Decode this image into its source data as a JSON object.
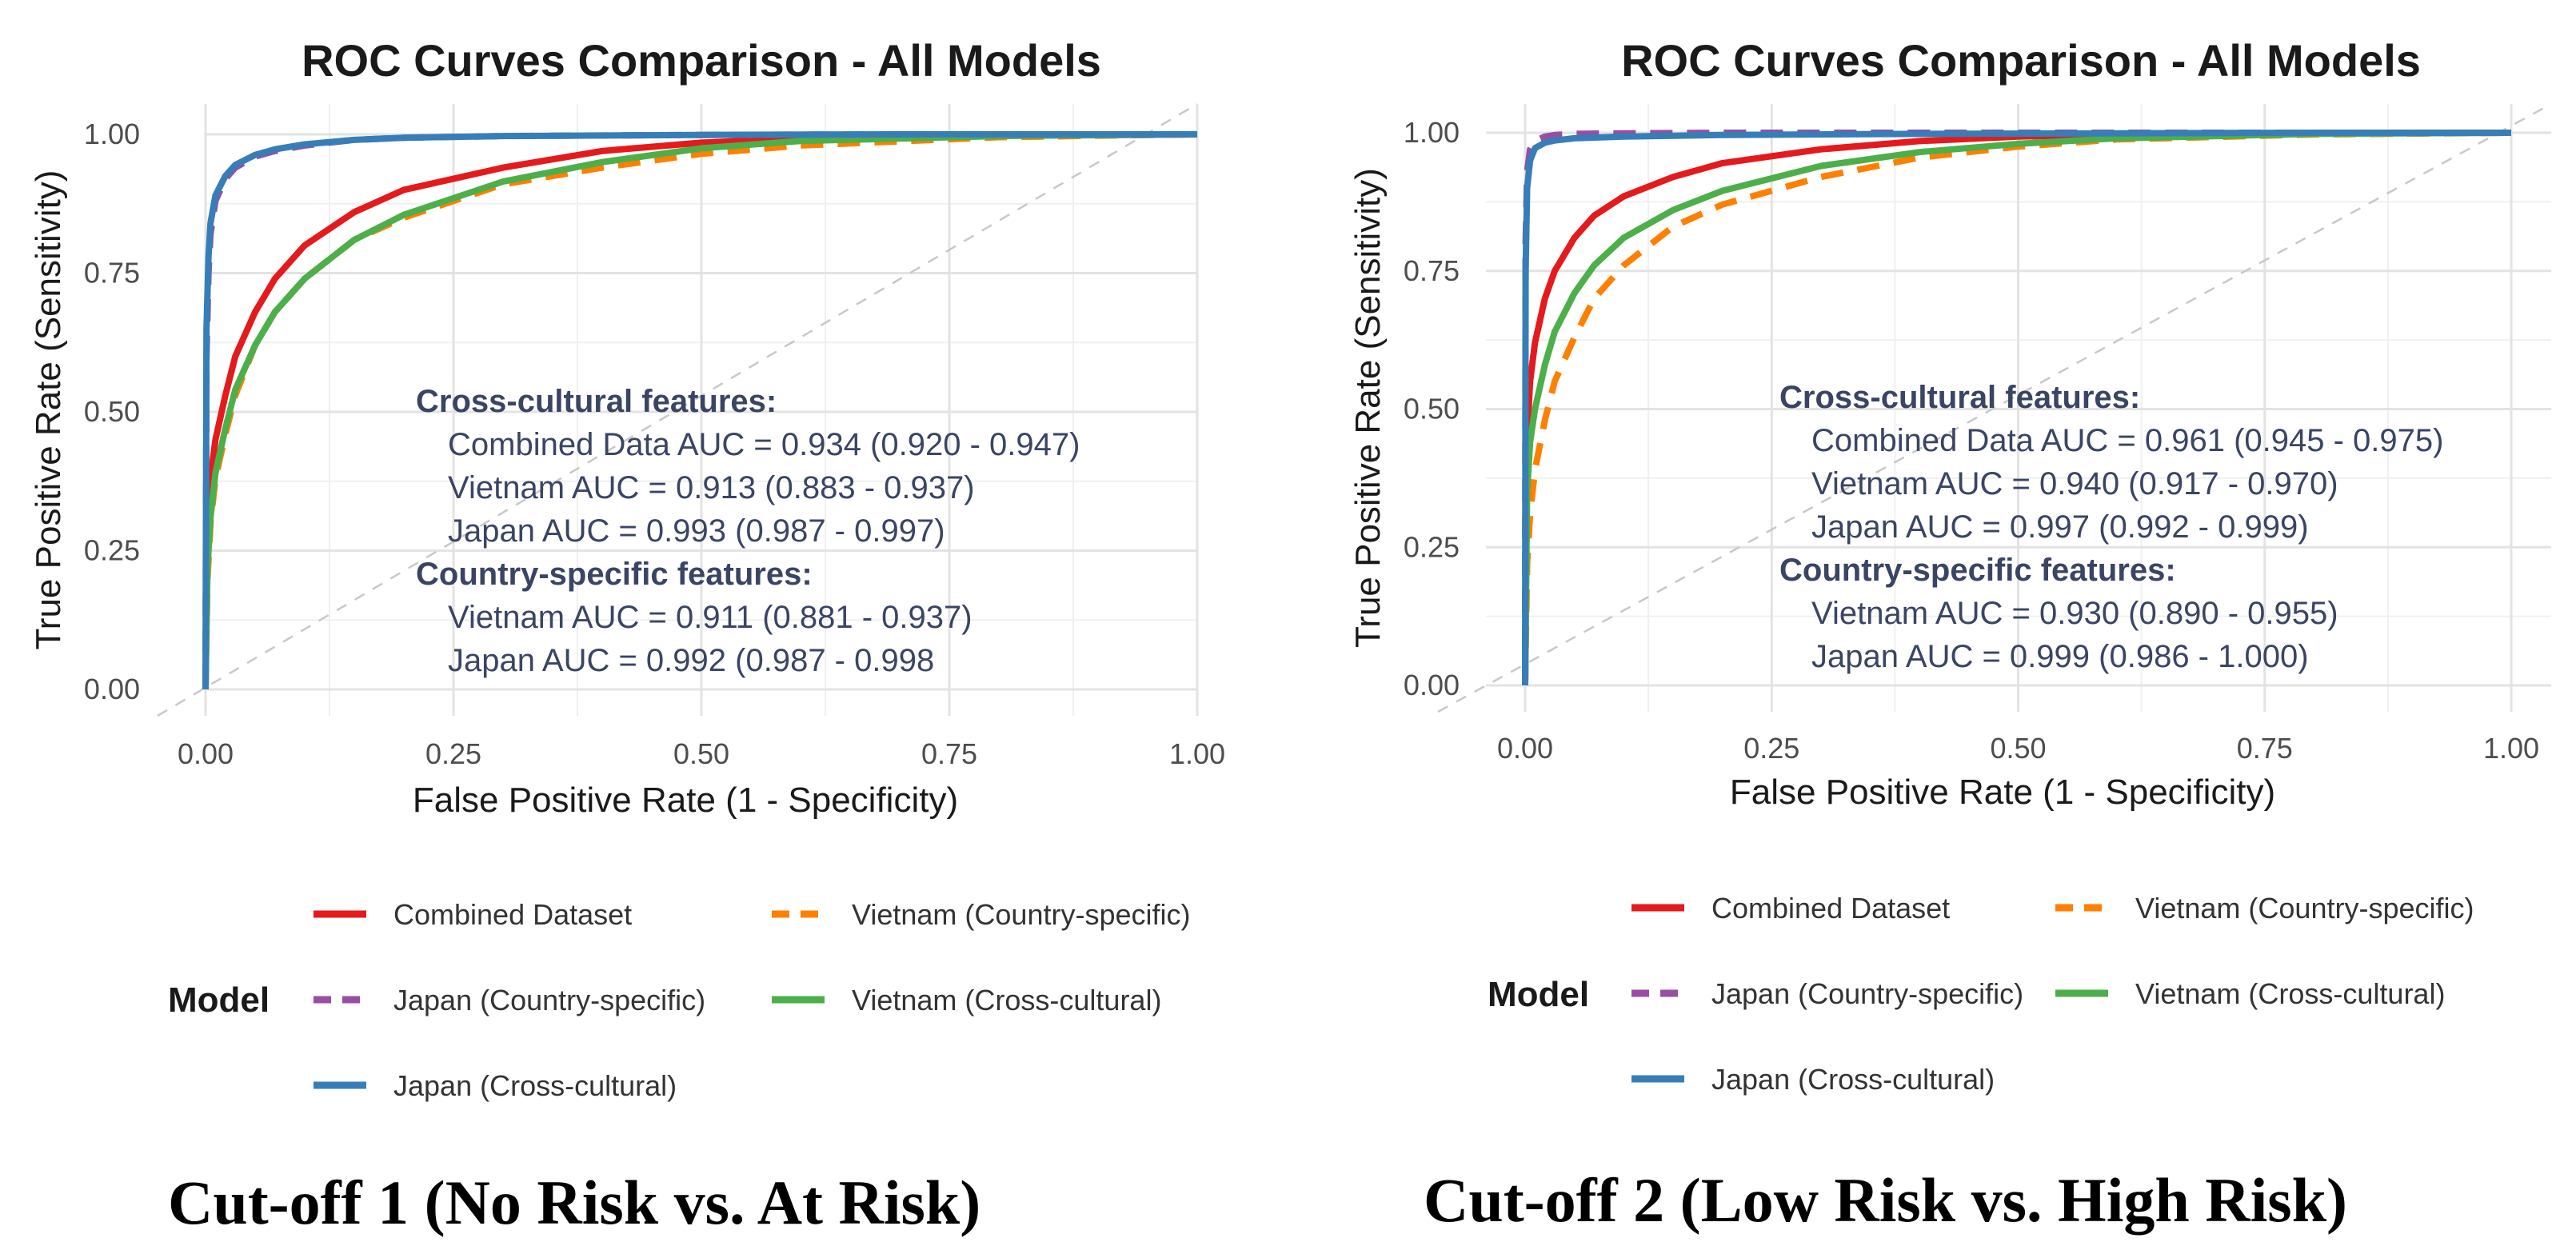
{
  "chart_data": [
    {
      "type": "line",
      "title": "ROC Curves Comparison - All Models",
      "xlabel": "False Positive Rate (1 - Specificity)",
      "ylabel": "True Positive Rate (Sensitivity)",
      "xlim": [
        0,
        1
      ],
      "ylim": [
        0,
        1
      ],
      "x_ticks": [
        "0.00",
        "0.25",
        "0.50",
        "0.75",
        "1.00"
      ],
      "y_ticks": [
        "0.00",
        "0.25",
        "0.50",
        "0.75",
        "1.00"
      ],
      "grid": true,
      "diagonal_reference": true,
      "series": [
        {
          "name": "Combined Dataset",
          "color": "#e41a1c",
          "dash": "solid",
          "x": [
            0,
            0.002,
            0.005,
            0.01,
            0.02,
            0.03,
            0.05,
            0.07,
            0.1,
            0.15,
            0.2,
            0.3,
            0.4,
            0.5,
            0.6,
            0.8,
            1.0
          ],
          "y": [
            0,
            0.28,
            0.38,
            0.45,
            0.53,
            0.6,
            0.68,
            0.74,
            0.8,
            0.86,
            0.9,
            0.94,
            0.97,
            0.985,
            0.993,
            0.998,
            1.0
          ]
        },
        {
          "name": "Vietnam (Country-specific)",
          "color": "#ff7f00",
          "dash": "dashed",
          "x": [
            0,
            0.002,
            0.005,
            0.01,
            0.02,
            0.03,
            0.05,
            0.07,
            0.1,
            0.15,
            0.2,
            0.3,
            0.4,
            0.5,
            0.6,
            0.8,
            1.0
          ],
          "y": [
            0,
            0.2,
            0.3,
            0.38,
            0.46,
            0.53,
            0.62,
            0.68,
            0.74,
            0.81,
            0.85,
            0.91,
            0.94,
            0.965,
            0.98,
            0.995,
            1.0
          ]
        },
        {
          "name": "Vietnam (Cross-cultural)",
          "color": "#4daf4a",
          "dash": "solid",
          "x": [
            0,
            0.002,
            0.005,
            0.01,
            0.02,
            0.03,
            0.05,
            0.07,
            0.1,
            0.15,
            0.2,
            0.3,
            0.4,
            0.5,
            0.6,
            0.8,
            1.0
          ],
          "y": [
            0,
            0.22,
            0.31,
            0.39,
            0.47,
            0.54,
            0.62,
            0.68,
            0.74,
            0.81,
            0.855,
            0.915,
            0.95,
            0.975,
            0.988,
            0.997,
            1.0
          ]
        },
        {
          "name": "Japan (Country-specific)",
          "color": "#984ea3",
          "dash": "dashed",
          "x": [
            0,
            0.001,
            0.003,
            0.005,
            0.01,
            0.02,
            0.03,
            0.05,
            0.07,
            0.1,
            0.15,
            0.2,
            0.3,
            0.5,
            0.7,
            1.0
          ],
          "y": [
            0,
            0.6,
            0.75,
            0.82,
            0.88,
            0.92,
            0.94,
            0.96,
            0.97,
            0.98,
            0.99,
            0.994,
            0.997,
            0.999,
            1.0,
            1.0
          ]
        },
        {
          "name": "Japan (Cross-cultural)",
          "color": "#377eb8",
          "dash": "solid",
          "x": [
            0,
            0.001,
            0.003,
            0.005,
            0.01,
            0.02,
            0.03,
            0.05,
            0.07,
            0.1,
            0.15,
            0.2,
            0.3,
            0.5,
            0.7,
            1.0
          ],
          "y": [
            0,
            0.65,
            0.78,
            0.84,
            0.89,
            0.925,
            0.945,
            0.963,
            0.973,
            0.982,
            0.99,
            0.994,
            0.997,
            0.999,
            1.0,
            1.0
          ]
        }
      ],
      "annotation": {
        "cross_cultural_heading": "Cross-cultural features:",
        "cross_cultural_lines": [
          "Combined Data AUC = 0.934 (0.920 - 0.947)",
          "Vietnam AUC = 0.913 (0.883 - 0.937)",
          "Japan AUC = 0.993 (0.987 - 0.997)"
        ],
        "country_specific_heading": "Country-specific features:",
        "country_specific_lines": [
          "Vietnam AUC = 0.911 (0.881 - 0.937)",
          "Japan AUC = 0.992 (0.987 - 0.998"
        ]
      },
      "legend": {
        "title": "Model",
        "position": "bottom",
        "entries": [
          {
            "label": "Combined Dataset",
            "color": "#e41a1c",
            "dash": "solid"
          },
          {
            "label": "Vietnam (Country-specific)",
            "color": "#ff7f00",
            "dash": "dashed"
          },
          {
            "label": "Japan (Country-specific)",
            "color": "#984ea3",
            "dash": "dashed"
          },
          {
            "label": "Vietnam (Cross-cultural)",
            "color": "#4daf4a",
            "dash": "solid"
          },
          {
            "label": "Japan (Cross-cultural)",
            "color": "#377eb8",
            "dash": "solid"
          }
        ]
      },
      "caption": "Cut-off 1 (No Risk vs. At Risk)"
    },
    {
      "type": "line",
      "title": "ROC Curves Comparison - All Models",
      "xlabel": "False Positive Rate (1 - Specificity)",
      "ylabel": "True Positive Rate (Sensitivity)",
      "xlim": [
        0,
        1
      ],
      "ylim": [
        0,
        1
      ],
      "x_ticks": [
        "0.00",
        "0.25",
        "0.50",
        "0.75",
        "1.00"
      ],
      "y_ticks": [
        "0.00",
        "0.25",
        "0.50",
        "0.75",
        "1.00"
      ],
      "grid": true,
      "diagonal_reference": true,
      "series": [
        {
          "name": "Combined Dataset",
          "color": "#e41a1c",
          "dash": "solid",
          "x": [
            0,
            0.002,
            0.005,
            0.01,
            0.02,
            0.03,
            0.05,
            0.07,
            0.1,
            0.15,
            0.2,
            0.3,
            0.4,
            0.5,
            0.6,
            0.8,
            1.0
          ],
          "y": [
            0,
            0.45,
            0.55,
            0.62,
            0.7,
            0.75,
            0.81,
            0.85,
            0.885,
            0.92,
            0.945,
            0.97,
            0.985,
            0.993,
            0.997,
            0.999,
            1.0
          ]
        },
        {
          "name": "Vietnam (Country-specific)",
          "color": "#ff7f00",
          "dash": "dashed",
          "x": [
            0,
            0.002,
            0.005,
            0.01,
            0.02,
            0.03,
            0.05,
            0.07,
            0.1,
            0.15,
            0.2,
            0.3,
            0.4,
            0.5,
            0.6,
            0.8,
            1.0
          ],
          "y": [
            0,
            0.22,
            0.31,
            0.39,
            0.48,
            0.55,
            0.63,
            0.7,
            0.76,
            0.83,
            0.87,
            0.92,
            0.955,
            0.975,
            0.988,
            0.997,
            1.0
          ]
        },
        {
          "name": "Vietnam (Cross-cultural)",
          "color": "#4daf4a",
          "dash": "solid",
          "x": [
            0,
            0.002,
            0.005,
            0.01,
            0.02,
            0.03,
            0.05,
            0.07,
            0.1,
            0.15,
            0.2,
            0.3,
            0.4,
            0.5,
            0.6,
            0.8,
            1.0
          ],
          "y": [
            0,
            0.35,
            0.44,
            0.5,
            0.58,
            0.64,
            0.71,
            0.76,
            0.81,
            0.86,
            0.895,
            0.94,
            0.965,
            0.98,
            0.99,
            0.998,
            1.0
          ]
        },
        {
          "name": "Japan (Country-specific)",
          "color": "#984ea3",
          "dash": "dashed",
          "x": [
            0,
            0.0005,
            0.002,
            0.005,
            0.01,
            0.02,
            0.03,
            0.05,
            0.1,
            0.2,
            0.4,
            1.0
          ],
          "y": [
            0,
            0.8,
            0.93,
            0.97,
            0.985,
            0.993,
            0.996,
            0.998,
            0.999,
            1.0,
            1.0,
            1.0
          ]
        },
        {
          "name": "Japan (Cross-cultural)",
          "color": "#377eb8",
          "dash": "solid",
          "x": [
            0,
            0.0005,
            0.002,
            0.005,
            0.01,
            0.02,
            0.03,
            0.05,
            0.1,
            0.2,
            0.4,
            0.6,
            0.8,
            1.0
          ],
          "y": [
            0,
            0.75,
            0.9,
            0.95,
            0.972,
            0.982,
            0.986,
            0.99,
            0.993,
            0.996,
            0.998,
            0.999,
            1.0,
            1.0
          ]
        }
      ],
      "annotation": {
        "cross_cultural_heading": "Cross-cultural features:",
        "cross_cultural_lines": [
          "Combined Data AUC = 0.961 (0.945 - 0.975)",
          "Vietnam AUC = 0.940 (0.917 - 0.970)",
          "Japan AUC = 0.997 (0.992 - 0.999)"
        ],
        "country_specific_heading": "Country-specific features:",
        "country_specific_lines": [
          "Vietnam AUC = 0.930 (0.890 - 0.955)",
          "Japan AUC = 0.999 (0.986 - 1.000)"
        ]
      },
      "legend": {
        "title": "Model",
        "position": "bottom",
        "entries": [
          {
            "label": "Combined Dataset",
            "color": "#e41a1c",
            "dash": "solid"
          },
          {
            "label": "Vietnam (Country-specific)",
            "color": "#ff7f00",
            "dash": "dashed"
          },
          {
            "label": "Japan (Country-specific)",
            "color": "#984ea3",
            "dash": "dashed"
          },
          {
            "label": "Vietnam (Cross-cultural)",
            "color": "#4daf4a",
            "dash": "solid"
          },
          {
            "label": "Japan (Cross-cultural)",
            "color": "#377eb8",
            "dash": "solid"
          }
        ]
      },
      "caption": "Cut-off 2 (Low Risk vs. High Risk)"
    }
  ]
}
